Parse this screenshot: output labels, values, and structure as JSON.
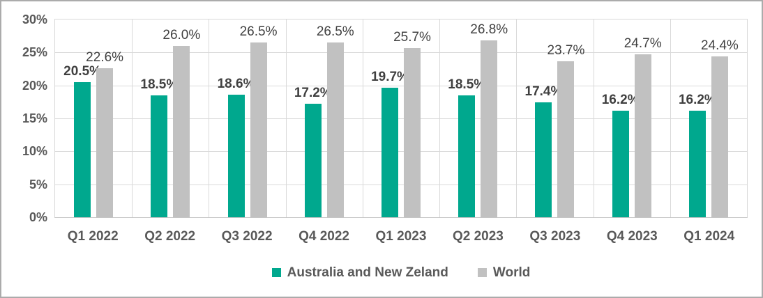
{
  "figure": {
    "background": "#FFFFFF",
    "border_color": "#ABABAB"
  },
  "chart_data": {
    "type": "bar",
    "title": "",
    "xlabel": "",
    "ylabel": "",
    "categories": [
      "Q1 2022",
      "Q2 2022",
      "Q3 2022",
      "Q4 2022",
      "Q1 2023",
      "Q2 2023",
      "Q3 2023",
      "Q4 2023",
      "Q1 2024"
    ],
    "series": [
      {
        "name": "Australia and New Zeland",
        "color": "#00A88E",
        "values": [
          20.5,
          18.5,
          18.6,
          17.2,
          19.7,
          18.5,
          17.4,
          16.2,
          16.2
        ],
        "labels": [
          "20.5%",
          "18.5%",
          "18.6%",
          "17.2%",
          "19.7%",
          "18.5%",
          "17.4%",
          "16.2%",
          "16.2%"
        ],
        "label_bold": true
      },
      {
        "name": "World",
        "color": "#C1C1C1",
        "values": [
          22.6,
          26.0,
          26.5,
          26.5,
          25.7,
          26.8,
          23.7,
          24.7,
          24.4
        ],
        "labels": [
          "22.6%",
          "26.0%",
          "26.5%",
          "26.5%",
          "25.7%",
          "26.8%",
          "23.7%",
          "24.7%",
          "24.4%"
        ],
        "label_bold": false
      }
    ],
    "ylim": [
      0,
      30
    ],
    "ytick_step": 5,
    "ytick_labels": [
      "0%",
      "5%",
      "10%",
      "15%",
      "20%",
      "25%",
      "30%"
    ],
    "grid": "horizontal and vertical category boundaries",
    "gridline_color": "#D9D9D9",
    "legend_position": "bottom",
    "label_color": "#404040",
    "axis_text_color": "#595959"
  }
}
